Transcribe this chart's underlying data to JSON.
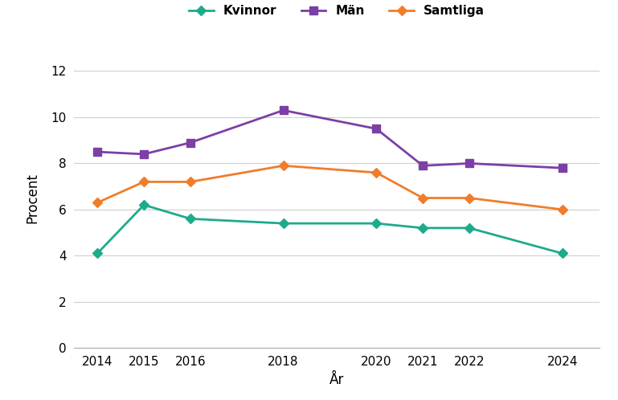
{
  "years": [
    2014,
    2015,
    2016,
    2018,
    2020,
    2021,
    2022,
    2024
  ],
  "kvinnor": [
    4.1,
    6.2,
    5.6,
    5.4,
    5.4,
    5.2,
    5.2,
    4.1
  ],
  "man": [
    8.5,
    8.4,
    8.9,
    10.3,
    9.5,
    7.9,
    8.0,
    7.8
  ],
  "samtliga": [
    6.3,
    7.2,
    7.2,
    7.9,
    7.6,
    6.5,
    6.5,
    6.0
  ],
  "kvinnor_color": "#1dab8b",
  "man_color": "#7b3fa6",
  "samtliga_color": "#f07d2a",
  "xlabel": "År",
  "ylabel": "Procent",
  "ylim": [
    0,
    13
  ],
  "yticks": [
    0,
    2,
    4,
    6,
    8,
    10,
    12
  ],
  "legend_labels": [
    "Kvinnor",
    "Män",
    "Samtliga"
  ],
  "background_color": "#ffffff",
  "grid_color": "#d0d0d0"
}
